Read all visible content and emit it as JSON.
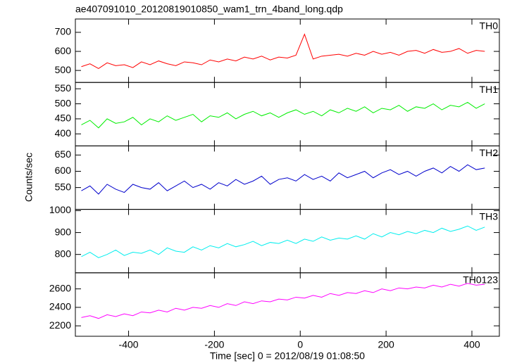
{
  "chart_data": [
    {
      "type": "line",
      "title": "ae407091010_20120819010850_wam1_trn_4band_long.qdp",
      "x": [
        -510,
        -490,
        -470,
        -450,
        -430,
        -410,
        -390,
        -370,
        -350,
        -330,
        -310,
        -290,
        -270,
        -250,
        -230,
        -210,
        -190,
        -170,
        -150,
        -130,
        -110,
        -90,
        -70,
        -50,
        -30,
        -10,
        10,
        30,
        50,
        70,
        90,
        110,
        130,
        150,
        170,
        190,
        210,
        230,
        250,
        270,
        290,
        310,
        330,
        350,
        370,
        390,
        410,
        430
      ],
      "series": [
        {
          "name": "TH0",
          "color": "#ff0000",
          "values": [
            520,
            535,
            510,
            540,
            525,
            530,
            515,
            545,
            530,
            550,
            535,
            525,
            545,
            540,
            530,
            555,
            545,
            560,
            550,
            570,
            560,
            575,
            555,
            570,
            565,
            580,
            690,
            560,
            575,
            580,
            585,
            575,
            590,
            580,
            600,
            585,
            595,
            580,
            600,
            605,
            590,
            610,
            595,
            600,
            615,
            590,
            605,
            600
          ]
        }
      ],
      "ylim": [
        437,
        770
      ],
      "yticks": [
        500,
        600,
        700
      ]
    },
    {
      "type": "line",
      "x": [
        -510,
        -490,
        -470,
        -450,
        -430,
        -410,
        -390,
        -370,
        -350,
        -330,
        -310,
        -290,
        -270,
        -250,
        -230,
        -210,
        -190,
        -170,
        -150,
        -130,
        -110,
        -90,
        -70,
        -50,
        -30,
        -10,
        10,
        30,
        50,
        70,
        90,
        110,
        130,
        150,
        170,
        190,
        210,
        230,
        250,
        270,
        290,
        310,
        330,
        350,
        370,
        390,
        410,
        430
      ],
      "series": [
        {
          "name": "TH1",
          "color": "#00ee00",
          "values": [
            430,
            445,
            420,
            450,
            435,
            440,
            455,
            430,
            450,
            440,
            460,
            445,
            455,
            465,
            440,
            460,
            455,
            470,
            450,
            465,
            475,
            460,
            470,
            455,
            470,
            480,
            465,
            475,
            460,
            480,
            470,
            485,
            475,
            490,
            470,
            485,
            480,
            495,
            475,
            490,
            485,
            500,
            480,
            495,
            490,
            505,
            485,
            500
          ]
        }
      ],
      "ylim": [
        360,
        571
      ],
      "yticks": [
        400,
        450,
        500,
        550
      ]
    },
    {
      "type": "line",
      "y_label": "Counts/sec",
      "x": [
        -510,
        -490,
        -470,
        -450,
        -430,
        -410,
        -390,
        -370,
        -350,
        -330,
        -310,
        -290,
        -270,
        -250,
        -230,
        -210,
        -190,
        -170,
        -150,
        -130,
        -110,
        -90,
        -70,
        -50,
        -30,
        -10,
        10,
        30,
        50,
        70,
        90,
        110,
        130,
        150,
        170,
        190,
        210,
        230,
        250,
        270,
        290,
        310,
        330,
        350,
        370,
        390,
        410,
        430
      ],
      "series": [
        {
          "name": "TH2",
          "color": "#0000cc",
          "values": [
            540,
            555,
            530,
            560,
            545,
            535,
            560,
            550,
            545,
            565,
            540,
            555,
            570,
            550,
            560,
            545,
            565,
            555,
            575,
            560,
            570,
            585,
            560,
            575,
            580,
            570,
            590,
            575,
            585,
            570,
            595,
            580,
            590,
            600,
            580,
            595,
            605,
            590,
            600,
            585,
            600,
            610,
            595,
            615,
            600,
            620,
            605,
            610
          ]
        }
      ],
      "ylim": [
        483,
        678
      ],
      "yticks": [
        550,
        600,
        650
      ]
    },
    {
      "type": "line",
      "x": [
        -510,
        -490,
        -470,
        -450,
        -430,
        -410,
        -390,
        -370,
        -350,
        -330,
        -310,
        -290,
        -270,
        -250,
        -230,
        -210,
        -190,
        -170,
        -150,
        -130,
        -110,
        -90,
        -70,
        -50,
        -30,
        -10,
        10,
        30,
        50,
        70,
        90,
        110,
        130,
        150,
        170,
        190,
        210,
        230,
        250,
        270,
        290,
        310,
        330,
        350,
        370,
        390,
        410,
        430
      ],
      "series": [
        {
          "name": "TH3",
          "color": "#00eeee",
          "values": [
            790,
            810,
            785,
            800,
            820,
            795,
            810,
            805,
            820,
            800,
            830,
            815,
            810,
            835,
            820,
            840,
            830,
            850,
            835,
            845,
            860,
            840,
            855,
            850,
            865,
            850,
            870,
            860,
            880,
            865,
            875,
            870,
            885,
            870,
            895,
            880,
            900,
            890,
            905,
            895,
            910,
            900,
            920,
            905,
            915,
            930,
            910,
            925
          ]
        }
      ],
      "ylim": [
        716,
        1006
      ],
      "yticks": [
        800,
        900,
        1000
      ]
    },
    {
      "type": "line",
      "x_label": "Time [sec] 0 = 2012/08/19 01:08:50",
      "x": [
        -510,
        -490,
        -470,
        -450,
        -430,
        -410,
        -390,
        -370,
        -350,
        -330,
        -310,
        -290,
        -270,
        -250,
        -230,
        -210,
        -190,
        -170,
        -150,
        -130,
        -110,
        -90,
        -70,
        -50,
        -30,
        -10,
        10,
        30,
        50,
        70,
        90,
        110,
        130,
        150,
        170,
        190,
        210,
        230,
        250,
        270,
        290,
        310,
        330,
        350,
        370,
        390,
        410,
        430
      ],
      "series": [
        {
          "name": "TH0123",
          "color": "#ff00ff",
          "values": [
            2290,
            2310,
            2280,
            2320,
            2300,
            2330,
            2310,
            2350,
            2340,
            2370,
            2350,
            2390,
            2370,
            2400,
            2390,
            2420,
            2400,
            2440,
            2420,
            2460,
            2440,
            2470,
            2460,
            2490,
            2480,
            2510,
            2500,
            2530,
            2510,
            2550,
            2530,
            2560,
            2550,
            2580,
            2560,
            2600,
            2580,
            2610,
            2600,
            2620,
            2610,
            2640,
            2620,
            2650,
            2630,
            2660,
            2640,
            2650
          ]
        }
      ],
      "ylim": [
        2087,
        2774
      ],
      "yticks": [
        2200,
        2400,
        2600
      ],
      "xlim": [
        -524,
        464
      ],
      "xticks": [
        -400,
        -200,
        0,
        200,
        400
      ]
    }
  ]
}
